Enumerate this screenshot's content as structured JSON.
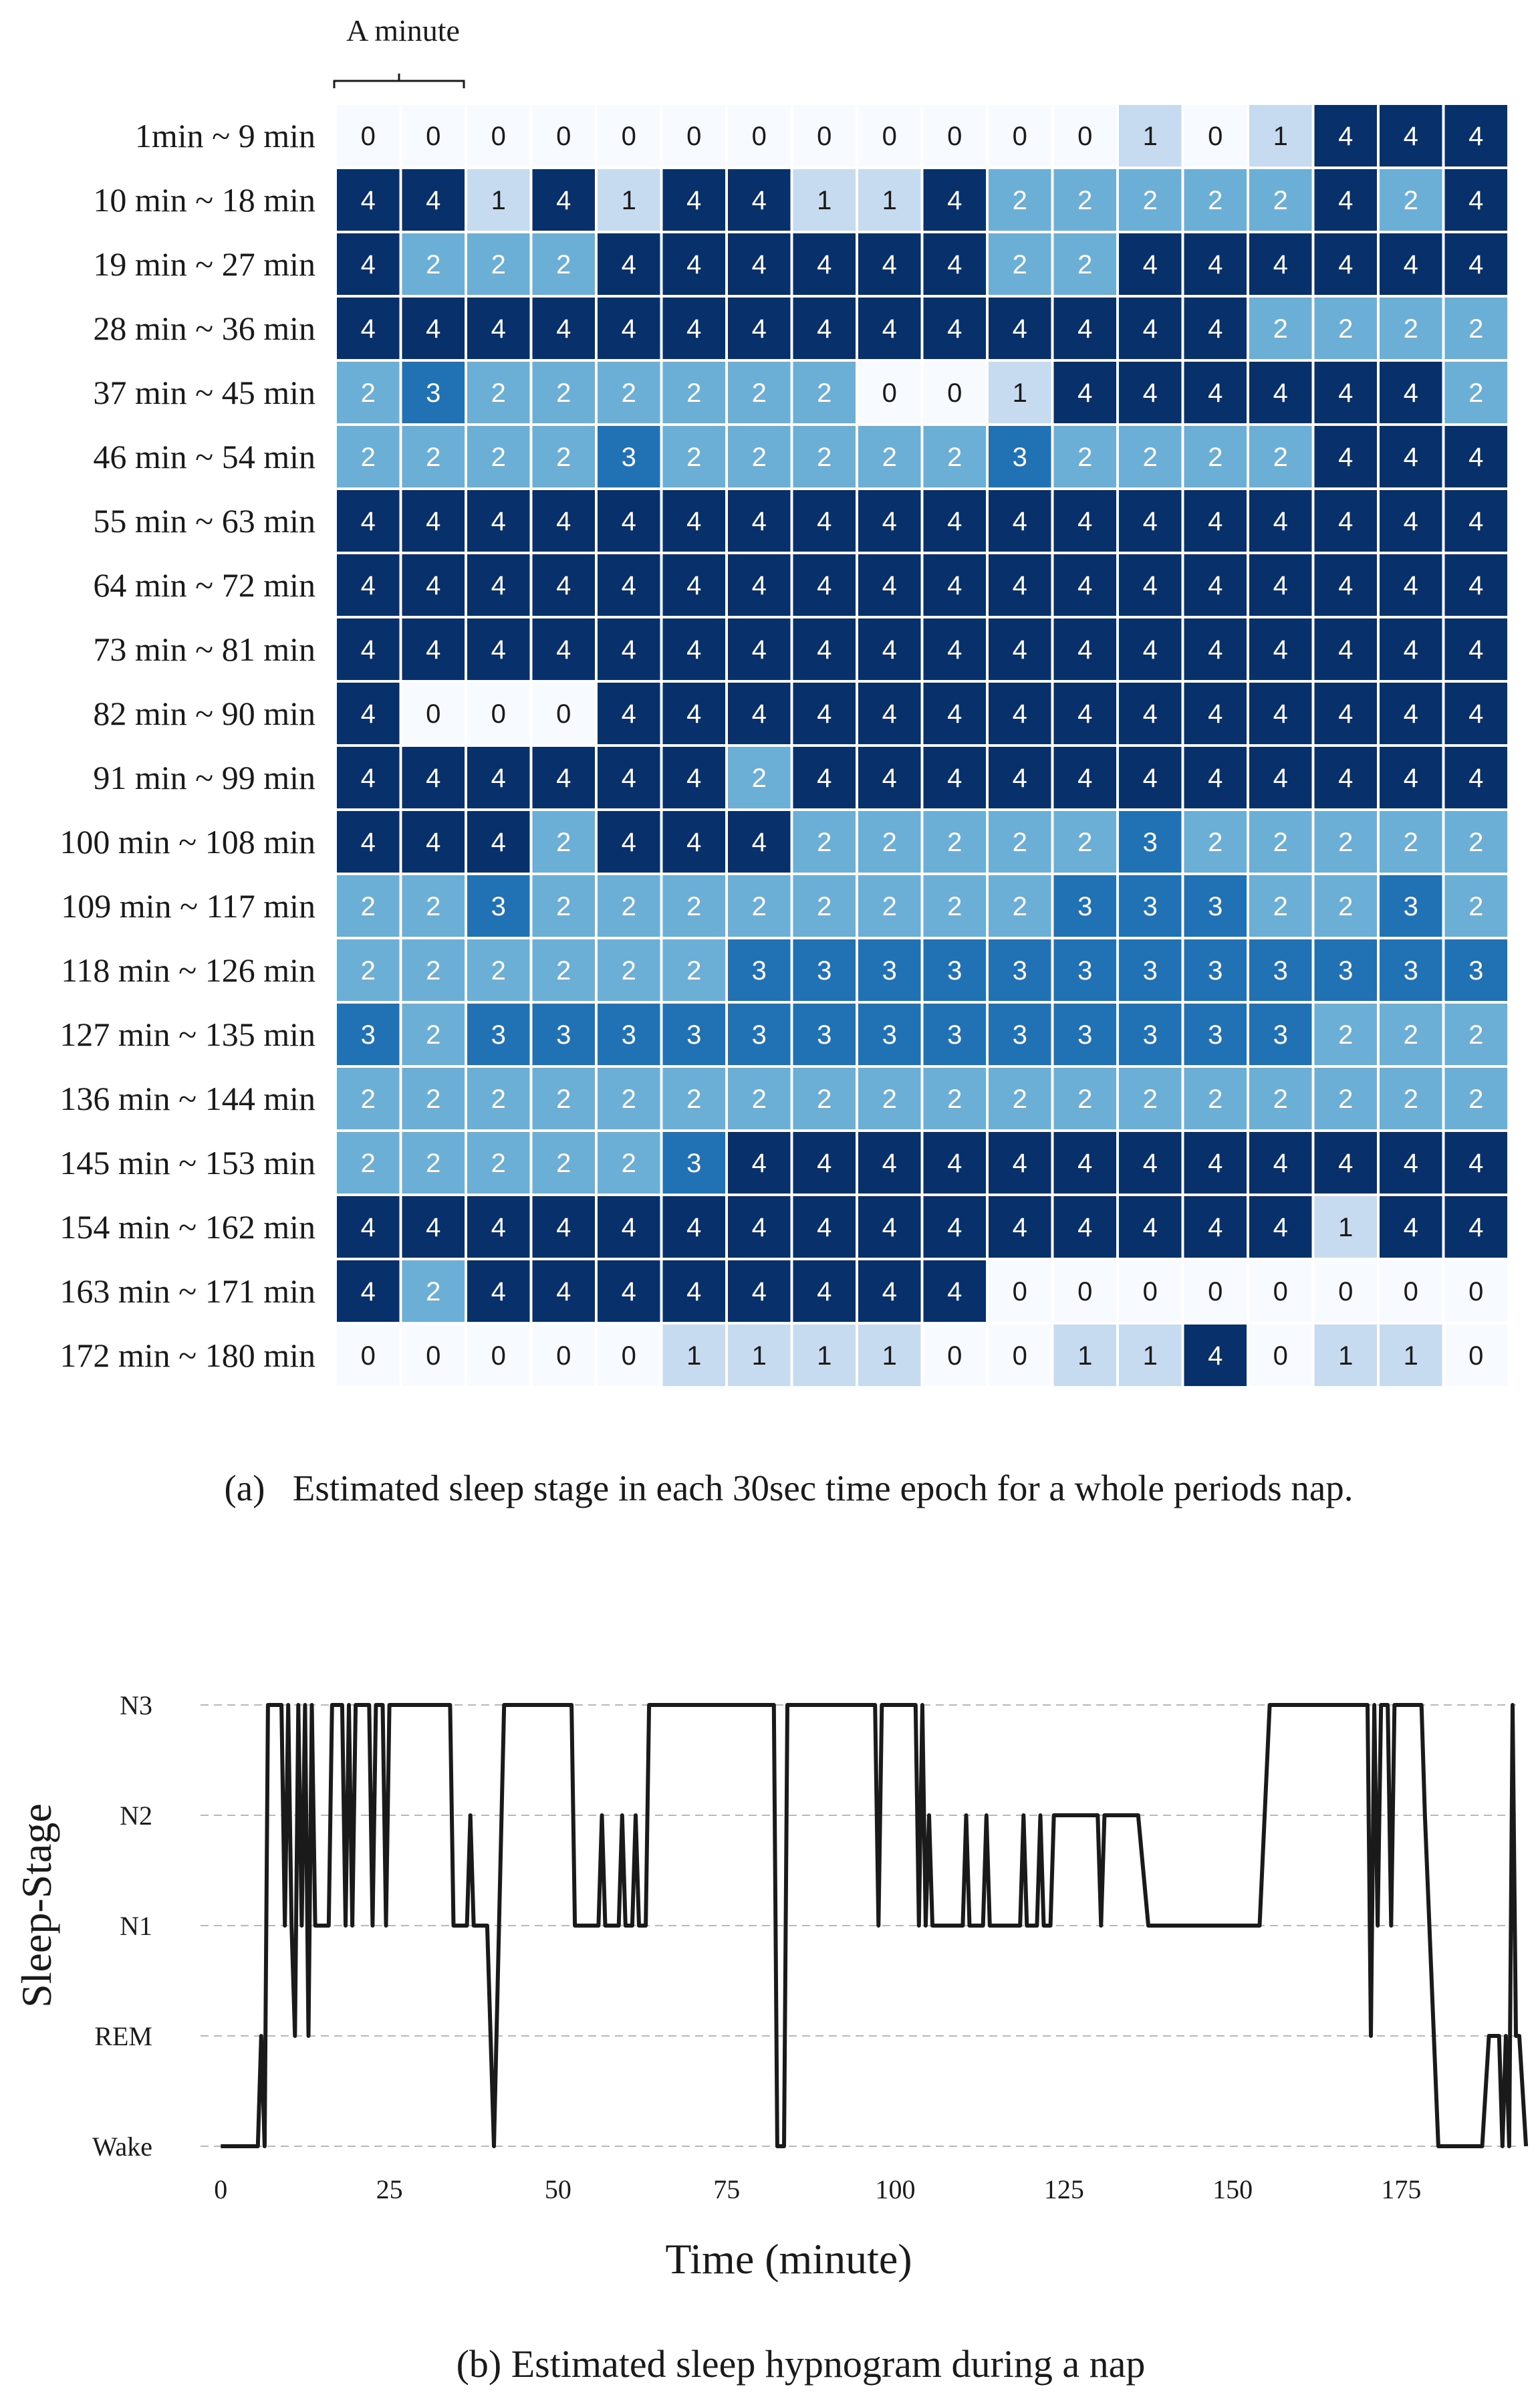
{
  "chart_data": [
    {
      "type": "heatmap",
      "title": "",
      "annotation": "A minute",
      "caption": "(a)   Estimated sleep stage in each 30sec time epoch for a whole periods nap.",
      "row_labels": [
        "1min ~ 9 min",
        "10 min ~ 18 min",
        "19 min ~ 27 min",
        "28 min ~ 36 min",
        "37 min ~ 45 min",
        "46 min ~ 54 min",
        "55 min ~ 63 min",
        "64 min ~ 72 min",
        "73 min ~ 81 min",
        "82 min ~ 90 min",
        "91 min ~ 99 min",
        "100 min ~ 108 min",
        "109 min ~ 117 min",
        "118 min ~ 126 min",
        "127 min ~ 135 min",
        "136 min ~ 144 min",
        "145 min ~ 153 min",
        "154 min ~ 162 min",
        "163 min ~ 171 min",
        "172 min ~ 180 min"
      ],
      "values": [
        [
          0,
          0,
          0,
          0,
          0,
          0,
          0,
          0,
          0,
          0,
          0,
          0,
          1,
          0,
          1,
          4,
          4,
          4
        ],
        [
          4,
          4,
          1,
          4,
          1,
          4,
          4,
          1,
          1,
          4,
          2,
          2,
          2,
          2,
          2,
          4,
          2,
          4
        ],
        [
          4,
          2,
          2,
          2,
          4,
          4,
          4,
          4,
          4,
          4,
          2,
          2,
          4,
          4,
          4,
          4,
          4,
          4
        ],
        [
          4,
          4,
          4,
          4,
          4,
          4,
          4,
          4,
          4,
          4,
          4,
          4,
          4,
          4,
          2,
          2,
          2,
          2
        ],
        [
          2,
          3,
          2,
          2,
          2,
          2,
          2,
          2,
          0,
          0,
          1,
          4,
          4,
          4,
          4,
          4,
          4,
          2
        ],
        [
          2,
          2,
          2,
          2,
          3,
          2,
          2,
          2,
          2,
          2,
          3,
          2,
          2,
          2,
          2,
          4,
          4,
          4
        ],
        [
          4,
          4,
          4,
          4,
          4,
          4,
          4,
          4,
          4,
          4,
          4,
          4,
          4,
          4,
          4,
          4,
          4,
          4
        ],
        [
          4,
          4,
          4,
          4,
          4,
          4,
          4,
          4,
          4,
          4,
          4,
          4,
          4,
          4,
          4,
          4,
          4,
          4
        ],
        [
          4,
          4,
          4,
          4,
          4,
          4,
          4,
          4,
          4,
          4,
          4,
          4,
          4,
          4,
          4,
          4,
          4,
          4
        ],
        [
          4,
          0,
          0,
          0,
          4,
          4,
          4,
          4,
          4,
          4,
          4,
          4,
          4,
          4,
          4,
          4,
          4,
          4
        ],
        [
          4,
          4,
          4,
          4,
          4,
          4,
          2,
          4,
          4,
          4,
          4,
          4,
          4,
          4,
          4,
          4,
          4,
          4
        ],
        [
          4,
          4,
          4,
          2,
          4,
          4,
          4,
          2,
          2,
          2,
          2,
          2,
          3,
          2,
          2,
          2,
          2,
          2
        ],
        [
          2,
          2,
          3,
          2,
          2,
          2,
          2,
          2,
          2,
          2,
          2,
          3,
          3,
          3,
          2,
          2,
          3,
          2
        ],
        [
          2,
          2,
          2,
          2,
          2,
          2,
          3,
          3,
          3,
          3,
          3,
          3,
          3,
          3,
          3,
          3,
          3,
          3
        ],
        [
          3,
          2,
          3,
          3,
          3,
          3,
          3,
          3,
          3,
          3,
          3,
          3,
          3,
          3,
          3,
          2,
          2,
          2
        ],
        [
          2,
          2,
          2,
          2,
          2,
          2,
          2,
          2,
          2,
          2,
          2,
          2,
          2,
          2,
          2,
          2,
          2,
          2
        ],
        [
          2,
          2,
          2,
          2,
          2,
          3,
          4,
          4,
          4,
          4,
          4,
          4,
          4,
          4,
          4,
          4,
          4,
          4
        ],
        [
          4,
          4,
          4,
          4,
          4,
          4,
          4,
          4,
          4,
          4,
          4,
          4,
          4,
          4,
          4,
          1,
          4,
          4
        ],
        [
          4,
          2,
          4,
          4,
          4,
          4,
          4,
          4,
          4,
          4,
          0,
          0,
          0,
          0,
          0,
          0,
          0,
          0
        ],
        [
          0,
          0,
          0,
          0,
          0,
          1,
          1,
          1,
          1,
          0,
          0,
          1,
          1,
          4,
          0,
          1,
          1,
          0
        ]
      ],
      "colors": {
        "0": "#f7fbff",
        "1": "#c6dbef",
        "2": "#6baed6",
        "3": "#2171b5",
        "4": "#08306b",
        "cell_border": "#ffffff",
        "text_dark": "#1a1a1a",
        "text_light": "#ffffff"
      }
    },
    {
      "type": "line",
      "title": "",
      "caption": "(b) Estimated sleep hypnogram during a nap",
      "xlabel": "Time (minute)",
      "ylabel": "Sleep-Stage",
      "xlim": [
        -3,
        192
      ],
      "xticks": [
        0,
        25,
        50,
        75,
        100,
        125,
        150,
        175
      ],
      "y_levels": [
        {
          "label": "Wake",
          "value": 0
        },
        {
          "label": "REM",
          "value": 1
        },
        {
          "label": "N1",
          "value": 2
        },
        {
          "label": "N2",
          "value": 3
        },
        {
          "label": "N3",
          "value": 4
        }
      ],
      "grid": "horizontal dashed",
      "series": [
        {
          "points": [
            [
              0,
              0
            ],
            [
              5.5,
              0
            ],
            [
              6,
              1
            ],
            [
              6.5,
              0
            ],
            [
              7,
              4
            ],
            [
              9,
              4
            ],
            [
              9.5,
              2
            ],
            [
              10,
              4
            ],
            [
              10.5,
              2
            ],
            [
              11,
              1
            ],
            [
              11.5,
              4
            ],
            [
              12,
              2
            ],
            [
              12.5,
              4
            ],
            [
              13,
              1
            ],
            [
              13.5,
              4
            ],
            [
              14,
              2
            ],
            [
              16,
              2
            ],
            [
              16.5,
              4
            ],
            [
              18,
              4
            ],
            [
              18.5,
              2
            ],
            [
              19,
              4
            ],
            [
              19.5,
              2
            ],
            [
              20,
              4
            ],
            [
              22,
              4
            ],
            [
              22.5,
              2
            ],
            [
              23,
              4
            ],
            [
              24,
              4
            ],
            [
              24.5,
              2
            ],
            [
              25,
              4
            ],
            [
              34,
              4
            ],
            [
              34.5,
              2
            ],
            [
              36.5,
              2
            ],
            [
              37,
              3
            ],
            [
              37.5,
              2
            ],
            [
              39.5,
              2
            ],
            [
              40.5,
              0
            ],
            [
              42,
              4
            ],
            [
              52,
              4
            ],
            [
              52.5,
              2
            ],
            [
              56,
              2
            ],
            [
              56.5,
              3
            ],
            [
              57,
              2
            ],
            [
              59,
              2
            ],
            [
              59.5,
              3
            ],
            [
              60,
              2
            ],
            [
              61,
              2
            ],
            [
              61.5,
              3
            ],
            [
              62,
              2
            ],
            [
              63,
              2
            ],
            [
              63.5,
              4
            ],
            [
              82,
              4
            ],
            [
              82.5,
              0
            ],
            [
              83.5,
              0
            ],
            [
              84,
              4
            ],
            [
              97,
              4
            ],
            [
              97.5,
              2
            ],
            [
              98,
              4
            ],
            [
              103,
              4
            ],
            [
              103.5,
              2
            ],
            [
              104,
              4
            ],
            [
              104.5,
              2
            ],
            [
              105,
              3
            ],
            [
              105.5,
              2
            ],
            [
              110,
              2
            ],
            [
              110.5,
              3
            ],
            [
              111,
              2
            ],
            [
              113,
              2
            ],
            [
              113.5,
              3
            ],
            [
              114,
              2
            ],
            [
              118.5,
              2
            ],
            [
              119,
              3
            ],
            [
              119.5,
              2
            ],
            [
              121,
              2
            ],
            [
              121.5,
              3
            ],
            [
              122,
              2
            ],
            [
              123,
              2
            ],
            [
              123.5,
              3
            ],
            [
              130,
              3
            ],
            [
              130.5,
              2
            ],
            [
              131,
              3
            ],
            [
              136,
              3
            ],
            [
              137.5,
              2
            ],
            [
              154,
              2
            ],
            [
              155.5,
              4
            ],
            [
              170,
              4
            ],
            [
              170.5,
              1
            ],
            [
              171,
              4
            ],
            [
              171.5,
              2
            ],
            [
              172,
              4
            ],
            [
              173,
              4
            ],
            [
              173.5,
              2
            ],
            [
              174,
              4
            ],
            [
              178,
              4
            ],
            [
              178.5,
              3
            ],
            [
              180.5,
              0
            ],
            [
              187,
              0
            ],
            [
              188,
              1
            ],
            [
              189.5,
              1
            ],
            [
              190,
              0
            ],
            [
              190.5,
              1
            ],
            [
              191,
              0
            ],
            [
              191.5,
              4
            ],
            [
              192,
              1
            ],
            [
              192.5,
              1
            ],
            [
              193.5,
              0
            ]
          ]
        }
      ]
    }
  ]
}
